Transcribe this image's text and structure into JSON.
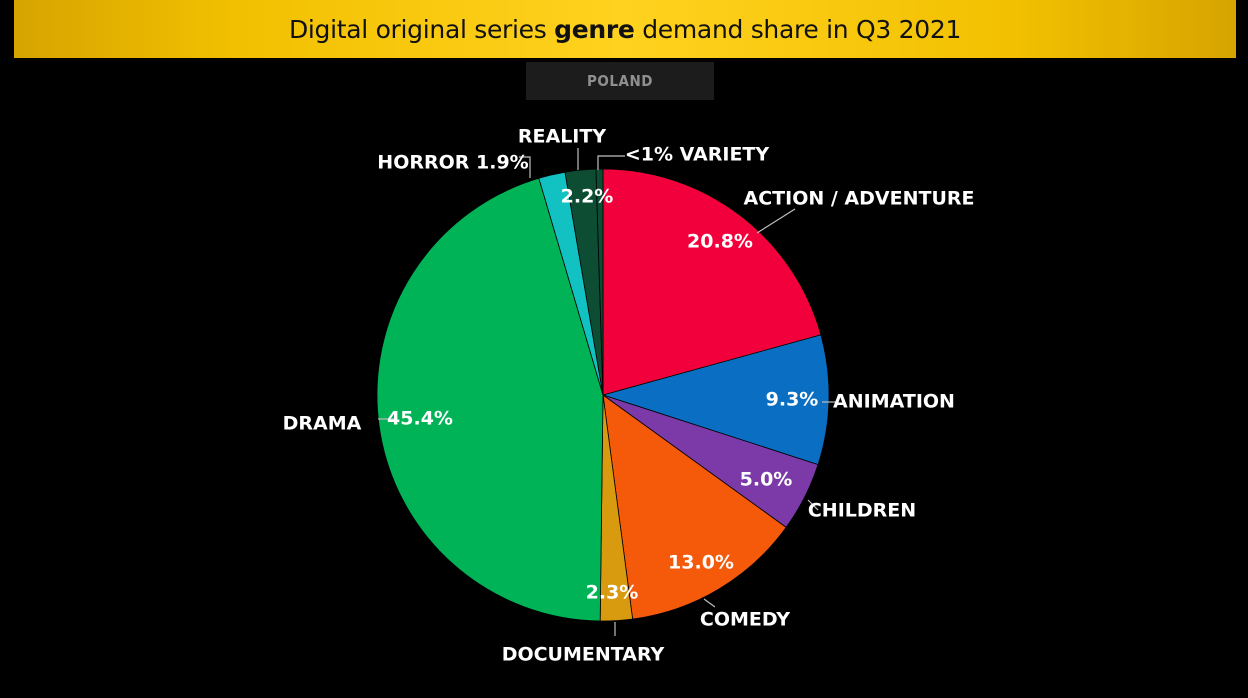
{
  "banner": {
    "title_pre": "Digital original series ",
    "title_bold": "genre",
    "title_post": " demand share in Q3 2021"
  },
  "tab": {
    "country": "POLAND"
  },
  "chart_data": {
    "type": "pie",
    "title": "Digital original series genre demand share in Q3 2021",
    "subtitle": "POLAND",
    "start": "12 o'clock, clockwise",
    "slices": [
      {
        "label": "ACTION / ADVENTURE",
        "value": 20.8,
        "display": "20.8%",
        "color": "#f2003c"
      },
      {
        "label": "ANIMATION",
        "value": 9.3,
        "display": "9.3%",
        "color": "#0a6fc2"
      },
      {
        "label": "CHILDREN",
        "value": 5.0,
        "display": "5.0%",
        "color": "#7b3aa8"
      },
      {
        "label": "COMEDY",
        "value": 13.0,
        "display": "13.0%",
        "color": "#f55a0a"
      },
      {
        "label": "DOCUMENTARY",
        "value": 2.3,
        "display": "2.3%",
        "color": "#d89a0e"
      },
      {
        "label": "DRAMA",
        "value": 45.4,
        "display": "45.4%",
        "color": "#00b356"
      },
      {
        "label": "HORROR",
        "value": 1.9,
        "display": "HORROR 1.9%",
        "color": "#12c2c2"
      },
      {
        "label": "REALITY",
        "value": 2.2,
        "display": "2.2%",
        "color": "#0c4d33"
      },
      {
        "label": "VARIETY",
        "value": 0.5,
        "display": "<1% VARIETY",
        "color": "#0c4d33"
      }
    ]
  }
}
